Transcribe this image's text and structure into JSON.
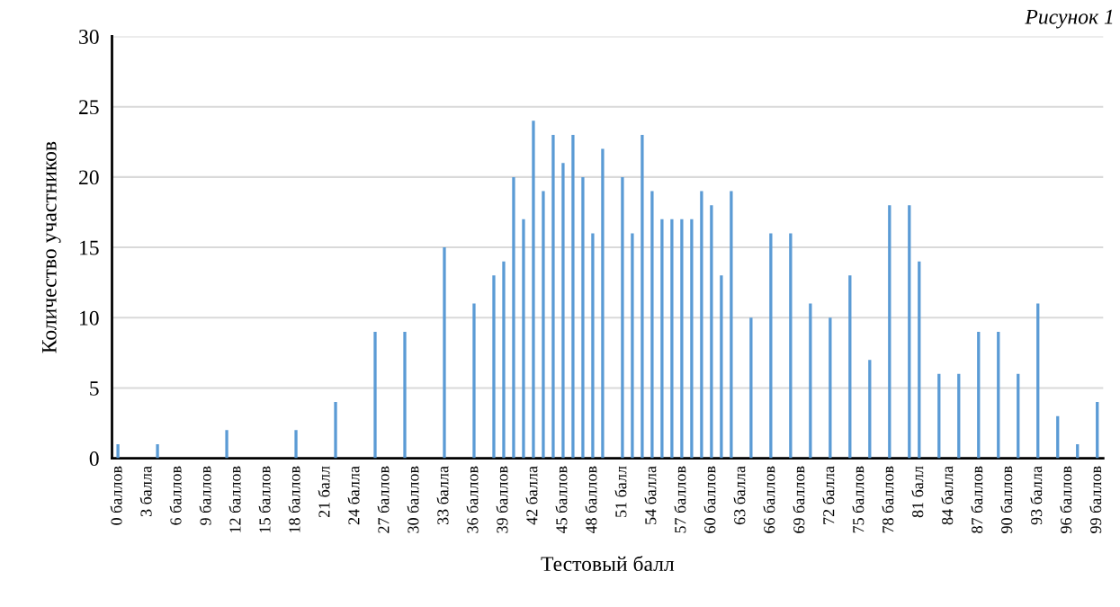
{
  "chart_data": {
    "type": "bar",
    "xlabel": "Тестовый балл",
    "ylabel": "Количество участников",
    "annotations": [
      "Рисунок 1"
    ],
    "categories": [
      "0 баллов",
      null,
      null,
      "3 балла",
      null,
      null,
      "6 баллов",
      null,
      null,
      "9 баллов",
      null,
      null,
      "12 баллов",
      null,
      null,
      "15 баллов",
      null,
      null,
      "18 баллов",
      null,
      null,
      "21 балл",
      null,
      null,
      "24 балла",
      null,
      null,
      "27 баллов",
      null,
      null,
      "30 баллов",
      null,
      null,
      "33 балла",
      null,
      null,
      "36 баллов",
      null,
      null,
      "39 баллов",
      null,
      null,
      "42 балла",
      null,
      null,
      "45 баллов",
      null,
      null,
      "48 баллов",
      null,
      null,
      "51 балл",
      null,
      null,
      "54 балла",
      null,
      null,
      "57 баллов",
      null,
      null,
      "60 баллов",
      null,
      null,
      "63 балла",
      null,
      null,
      "66 баллов",
      null,
      null,
      "69 баллов",
      null,
      null,
      "72 балла",
      null,
      null,
      "75 баллов",
      null,
      null,
      "78 баллов",
      null,
      null,
      "81 балл",
      null,
      null,
      "84 балла",
      null,
      null,
      "87 баллов",
      null,
      null,
      "90 баллов",
      null,
      null,
      "93 балла",
      null,
      null,
      "96 баллов",
      null,
      null,
      "99 баллов"
    ],
    "values": [
      1,
      0,
      0,
      0,
      1,
      0,
      0,
      0,
      0,
      0,
      0,
      2,
      0,
      0,
      0,
      0,
      0,
      0,
      2,
      0,
      0,
      0,
      4,
      0,
      0,
      0,
      9,
      0,
      0,
      9,
      0,
      0,
      0,
      15,
      0,
      0,
      11,
      0,
      13,
      14,
      20,
      17,
      24,
      19,
      23,
      21,
      23,
      20,
      16,
      22,
      0,
      20,
      16,
      23,
      19,
      17,
      17,
      17,
      17,
      19,
      18,
      13,
      19,
      0,
      10,
      0,
      16,
      0,
      16,
      0,
      11,
      0,
      10,
      0,
      13,
      0,
      7,
      0,
      18,
      0,
      18,
      14,
      0,
      6,
      0,
      6,
      0,
      9,
      0,
      9,
      0,
      6,
      0,
      11,
      0,
      3,
      0,
      1,
      0,
      4
    ],
    "color": "#5b9bd5",
    "ylim": [
      0,
      30
    ],
    "yticks": [
      0,
      5,
      10,
      15,
      20,
      25,
      30
    ],
    "grid": "y",
    "legend": false
  }
}
